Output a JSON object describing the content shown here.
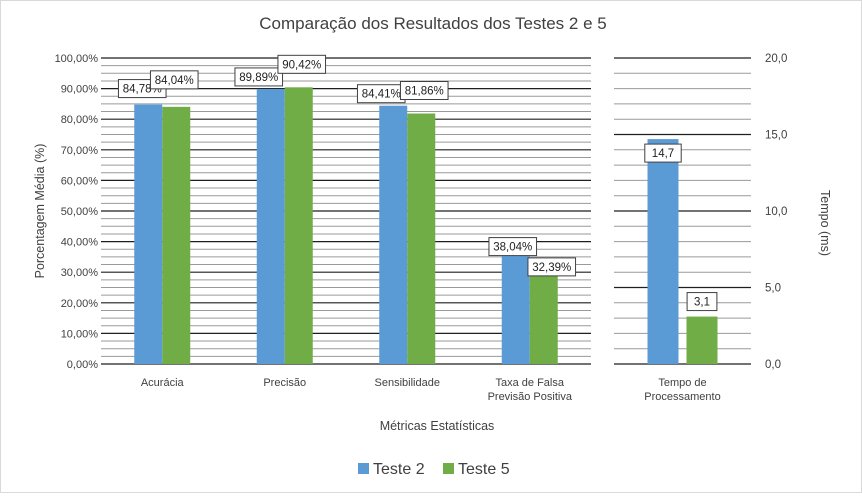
{
  "chart_data": [
    {
      "type": "bar",
      "title": "Comparação dos Resultados dos Testes 2 e 5",
      "xlabel": "Métricas Estatísticas",
      "ylabel": "Porcentagem Média (%)",
      "ylim": [
        0,
        100
      ],
      "yticks": [
        "0,00%",
        "10,00%",
        "20,00%",
        "30,00%",
        "40,00%",
        "50,00%",
        "60,00%",
        "70,00%",
        "80,00%",
        "90,00%",
        "100,00%"
      ],
      "categories": [
        "Acurácia",
        "Precisão",
        "Sensibilidade",
        "Taxa de Falsa Previsão Positiva"
      ],
      "series": [
        {
          "name": "Teste 2",
          "color": "#5B9BD5",
          "values": [
            84.78,
            89.89,
            84.41,
            38.04
          ],
          "labels": [
            "84,78%",
            "89,89%",
            "84,41%",
            "38,04%"
          ]
        },
        {
          "name": "Teste 5",
          "color": "#70AD47",
          "values": [
            84.04,
            90.42,
            81.86,
            32.39
          ],
          "labels": [
            "84,04%",
            "90,42%",
            "81,86%",
            "32,39%"
          ]
        }
      ],
      "grid": true,
      "legend": "bottom"
    },
    {
      "type": "bar",
      "ylabel": "Tempo (ms)",
      "ylim": [
        0,
        20
      ],
      "yticks": [
        "0,0",
        "5,0",
        "10,0",
        "15,0",
        "20,0"
      ],
      "categories": [
        "Tempo de Processamento"
      ],
      "series": [
        {
          "name": "Teste 2",
          "color": "#5B9BD5",
          "values": [
            14.7
          ],
          "labels": [
            "14,7"
          ]
        },
        {
          "name": "Teste 5",
          "color": "#70AD47",
          "values": [
            3.1
          ],
          "labels": [
            "3,1"
          ]
        }
      ],
      "grid": true
    }
  ],
  "legend": [
    {
      "name": "Teste 2",
      "color": "#5B9BD5"
    },
    {
      "name": "Teste 5",
      "color": "#70AD47"
    }
  ]
}
